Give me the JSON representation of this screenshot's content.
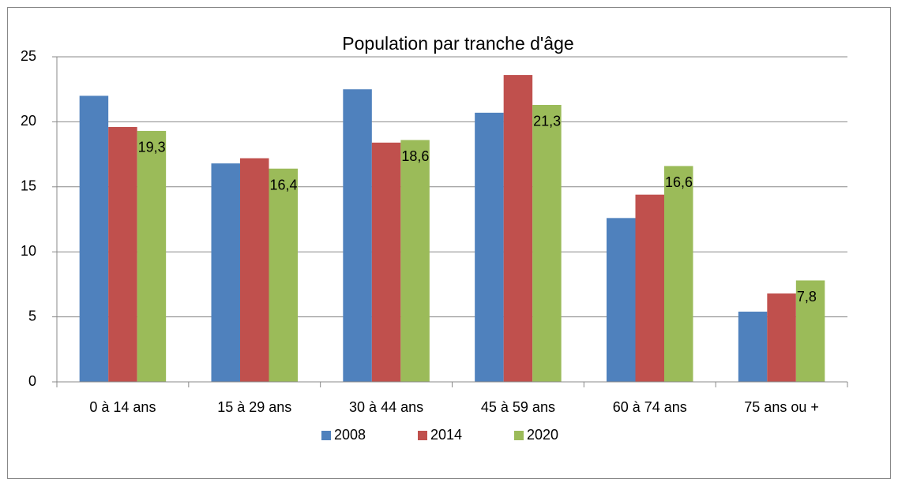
{
  "chart_data": {
    "type": "bar",
    "title": "Population par tranche d'âge",
    "categories": [
      "0 à 14 ans",
      "15 à 29 ans",
      "30 à 44 ans",
      "45 à 59 ans",
      "60 à 74 ans",
      "75 ans ou +"
    ],
    "series": [
      {
        "name": "2008",
        "color": "#4f81bd",
        "values": [
          22.0,
          16.8,
          22.5,
          20.7,
          12.6,
          5.4
        ]
      },
      {
        "name": "2014",
        "color": "#c0504d",
        "values": [
          19.6,
          17.2,
          18.4,
          23.6,
          14.4,
          6.8
        ]
      },
      {
        "name": "2020",
        "color": "#9bbb59",
        "values": [
          19.3,
          16.4,
          18.6,
          21.3,
          16.6,
          7.8
        ],
        "value_labels": [
          "19,3",
          "16,4",
          "18,6",
          "21,3",
          "16,6",
          "7,8"
        ]
      }
    ],
    "ylim": [
      0,
      25
    ],
    "yticks": [
      0,
      5,
      10,
      15,
      20,
      25
    ],
    "grid": true,
    "legend": "bottom"
  }
}
